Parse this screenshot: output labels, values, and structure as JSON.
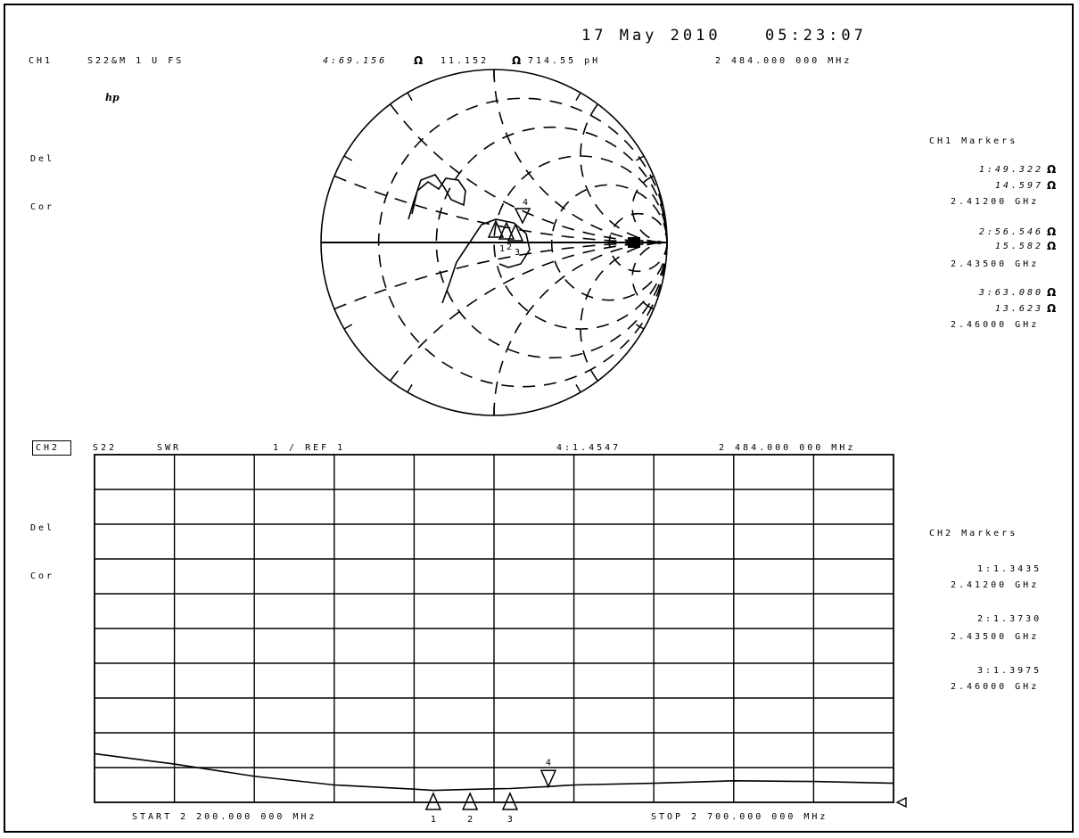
{
  "header": {
    "date": "17 May 2010",
    "time": "05:23:07"
  },
  "ch1": {
    "label": "CH1",
    "param": "S22&M 1 U FS",
    "marker_readout": [
      "4:69.156",
      "11.152",
      "714.55 pH"
    ],
    "freq": "2 484.000 000 MHz",
    "logo": "hp",
    "del": "Del",
    "cor": "Cor",
    "markers_title": "CH1 Markers",
    "markers": [
      {
        "id": "1",
        "r": "1:49.322",
        "x": "14.597",
        "f": "2.41200 GHz"
      },
      {
        "id": "2",
        "r": "2:56.546",
        "x": "15.582",
        "f": "2.43500 GHz"
      },
      {
        "id": "3",
        "r": "3:63.080",
        "x": "13.623",
        "f": "2.46000 GHz"
      }
    ],
    "ohm": "Ω",
    "plot_markers": [
      "1",
      "2",
      "3",
      "4"
    ]
  },
  "ch2": {
    "label": "CH2",
    "param": "S22",
    "format": "SWR",
    "scale": "1 / REF 1",
    "marker_readout": "4:1.4547",
    "freq": "2 484.000 000 MHz",
    "del": "Del",
    "cor": "Cor",
    "markers_title": "CH2 Markers",
    "markers": [
      {
        "id": "1",
        "val": "1:1.3435",
        "f": "2.41200 GHz"
      },
      {
        "id": "2",
        "val": "2:1.3730",
        "f": "2.43500 GHz"
      },
      {
        "id": "3",
        "val": "3:1.3975",
        "f": "2.46000 GHz"
      }
    ],
    "start": "START 2 200.000 000 MHz",
    "stop": "STOP 2 700.000 000 MHz"
  },
  "chart_data": [
    {
      "type": "line",
      "subtype": "smith",
      "series": [
        {
          "name": "S22",
          "x_mhz": [
            2412,
            2435,
            2460,
            2484
          ],
          "r_ohm": [
            49.322,
            56.546,
            63.08,
            69.156
          ],
          "x_ohm": [
            14.597,
            15.582,
            13.623,
            11.152
          ]
        }
      ]
    },
    {
      "type": "line",
      "subtype": "swr",
      "xlim": [
        2200,
        2700
      ],
      "ylim": [
        1,
        11
      ],
      "grid": true,
      "x": [
        2200,
        2250,
        2300,
        2350,
        2400,
        2412,
        2435,
        2450,
        2460,
        2484,
        2500,
        2550,
        2600,
        2650,
        2700
      ],
      "values": [
        2.4,
        2.1,
        1.75,
        1.5,
        1.38,
        1.3435,
        1.373,
        1.39,
        1.3975,
        1.4547,
        1.5,
        1.55,
        1.62,
        1.6,
        1.55
      ]
    }
  ]
}
